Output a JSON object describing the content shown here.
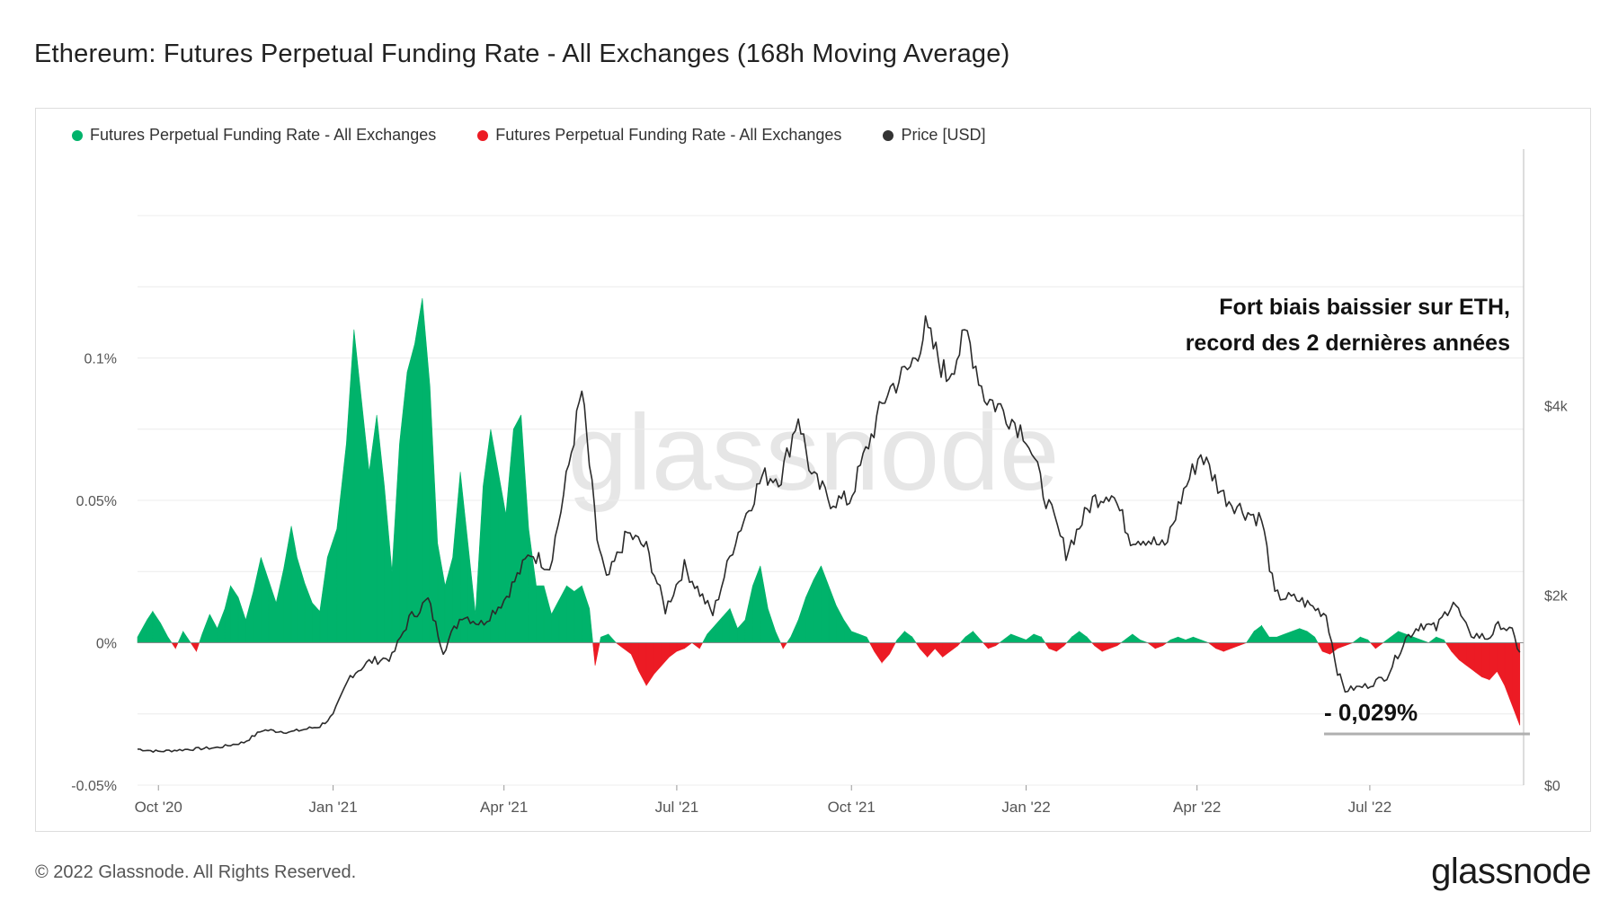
{
  "title": "Ethereum: Futures Perpetual Funding Rate - All Exchanges (168h Moving Average)",
  "footer": {
    "copyright": "© 2022 Glassnode. All Rights Reserved.",
    "logo": "glassnode"
  },
  "watermark": "glassnode",
  "annotation": {
    "line1": "Fort biais baissier sur ETH,",
    "line2": "record des 2 dernières années",
    "min_label": "- 0,029%"
  },
  "colors": {
    "positive": "#00b36b",
    "negative": "#ec1b24",
    "price": "#2b2b2b",
    "grid": "#ececec",
    "axis_text": "#555555"
  },
  "chart_data": {
    "type": "area",
    "title": "Ethereum: Futures Perpetual Funding Rate - All Exchanges (168h Moving Average)",
    "legend": [
      {
        "name": "Futures Perpetual Funding Rate - All Exchanges",
        "color": "#00b36b"
      },
      {
        "name": "Futures Perpetual Funding Rate - All Exchanges",
        "color": "#ec1b24"
      },
      {
        "name": "Price [USD]",
        "color": "#333333"
      }
    ],
    "x_start": "2020-09-20",
    "x_end": "2022-09-20",
    "x_ticks": [
      {
        "date": "2020-10-01",
        "label": "Oct '20"
      },
      {
        "date": "2021-01-01",
        "label": "Jan '21"
      },
      {
        "date": "2021-04-01",
        "label": "Apr '21"
      },
      {
        "date": "2021-07-01",
        "label": "Jul '21"
      },
      {
        "date": "2021-10-01",
        "label": "Oct '21"
      },
      {
        "date": "2022-01-01",
        "label": "Jan '22"
      },
      {
        "date": "2022-04-01",
        "label": "Apr '22"
      },
      {
        "date": "2022-07-01",
        "label": "Jul '22"
      }
    ],
    "y_left": {
      "min": -0.05,
      "max": 0.15,
      "ticks": [
        {
          "value": -0.05,
          "label": "-0.05%"
        },
        {
          "value": 0,
          "label": "0%"
        },
        {
          "value": 0.05,
          "label": "0.05%"
        },
        {
          "value": 0.1,
          "label": "0.1%"
        }
      ]
    },
    "y_right": {
      "min": 0,
      "max": 6000,
      "ticks": [
        {
          "value": 0,
          "label": "$0"
        },
        {
          "value": 2000,
          "label": "$2k"
        },
        {
          "value": 4000,
          "label": "$4k"
        }
      ]
    },
    "funding_rate_pct": [
      [
        "2020-09-20",
        0.002
      ],
      [
        "2020-09-25",
        0.008
      ],
      [
        "2020-09-28",
        0.011
      ],
      [
        "2020-10-02",
        0.007
      ],
      [
        "2020-10-06",
        0.002
      ],
      [
        "2020-10-10",
        -0.002
      ],
      [
        "2020-10-14",
        0.004
      ],
      [
        "2020-10-17",
        0.001
      ],
      [
        "2020-10-21",
        -0.003
      ],
      [
        "2020-10-24",
        0.003
      ],
      [
        "2020-10-28",
        0.01
      ],
      [
        "2020-11-01",
        0.005
      ],
      [
        "2020-11-05",
        0.012
      ],
      [
        "2020-11-08",
        0.02
      ],
      [
        "2020-11-12",
        0.016
      ],
      [
        "2020-11-16",
        0.008
      ],
      [
        "2020-11-20",
        0.018
      ],
      [
        "2020-11-24",
        0.03
      ],
      [
        "2020-11-28",
        0.022
      ],
      [
        "2020-12-02",
        0.014
      ],
      [
        "2020-12-06",
        0.026
      ],
      [
        "2020-12-10",
        0.041
      ],
      [
        "2020-12-13",
        0.03
      ],
      [
        "2020-12-17",
        0.021
      ],
      [
        "2020-12-21",
        0.014
      ],
      [
        "2020-12-25",
        0.011
      ],
      [
        "2020-12-29",
        0.03
      ],
      [
        "2021-01-03",
        0.04
      ],
      [
        "2021-01-08",
        0.07
      ],
      [
        "2021-01-12",
        0.11
      ],
      [
        "2021-01-16",
        0.085
      ],
      [
        "2021-01-20",
        0.06
      ],
      [
        "2021-01-24",
        0.08
      ],
      [
        "2021-01-28",
        0.055
      ],
      [
        "2021-02-01",
        0.025
      ],
      [
        "2021-02-05",
        0.07
      ],
      [
        "2021-02-09",
        0.095
      ],
      [
        "2021-02-13",
        0.105
      ],
      [
        "2021-02-17",
        0.121
      ],
      [
        "2021-02-21",
        0.09
      ],
      [
        "2021-02-25",
        0.035
      ],
      [
        "2021-03-01",
        0.02
      ],
      [
        "2021-03-05",
        0.03
      ],
      [
        "2021-03-09",
        0.06
      ],
      [
        "2021-03-13",
        0.035
      ],
      [
        "2021-03-17",
        0.01
      ],
      [
        "2021-03-21",
        0.055
      ],
      [
        "2021-03-25",
        0.075
      ],
      [
        "2021-03-29",
        0.06
      ],
      [
        "2021-04-02",
        0.045
      ],
      [
        "2021-04-06",
        0.075
      ],
      [
        "2021-04-10",
        0.08
      ],
      [
        "2021-04-14",
        0.04
      ],
      [
        "2021-04-18",
        0.02
      ],
      [
        "2021-04-22",
        0.02
      ],
      [
        "2021-04-26",
        0.01
      ],
      [
        "2021-04-30",
        0.015
      ],
      [
        "2021-05-04",
        0.02
      ],
      [
        "2021-05-08",
        0.018
      ],
      [
        "2021-05-12",
        0.02
      ],
      [
        "2021-05-16",
        0.012
      ],
      [
        "2021-05-19",
        -0.008
      ],
      [
        "2021-05-22",
        0.002
      ],
      [
        "2021-05-26",
        0.003
      ],
      [
        "2021-05-30",
        0.0
      ],
      [
        "2021-06-03",
        -0.002
      ],
      [
        "2021-06-07",
        -0.004
      ],
      [
        "2021-06-11",
        -0.01
      ],
      [
        "2021-06-15",
        -0.015
      ],
      [
        "2021-06-19",
        -0.011
      ],
      [
        "2021-06-23",
        -0.008
      ],
      [
        "2021-06-27",
        -0.005
      ],
      [
        "2021-07-01",
        -0.003
      ],
      [
        "2021-07-05",
        -0.002
      ],
      [
        "2021-07-09",
        0.0
      ],
      [
        "2021-07-13",
        -0.002
      ],
      [
        "2021-07-17",
        0.003
      ],
      [
        "2021-07-21",
        0.006
      ],
      [
        "2021-07-25",
        0.009
      ],
      [
        "2021-07-29",
        0.012
      ],
      [
        "2021-08-02",
        0.005
      ],
      [
        "2021-08-06",
        0.008
      ],
      [
        "2021-08-10",
        0.02
      ],
      [
        "2021-08-14",
        0.027
      ],
      [
        "2021-08-18",
        0.012
      ],
      [
        "2021-08-22",
        0.004
      ],
      [
        "2021-08-26",
        -0.002
      ],
      [
        "2021-08-30",
        0.002
      ],
      [
        "2021-09-03",
        0.008
      ],
      [
        "2021-09-07",
        0.016
      ],
      [
        "2021-09-11",
        0.022
      ],
      [
        "2021-09-15",
        0.027
      ],
      [
        "2021-09-19",
        0.02
      ],
      [
        "2021-09-23",
        0.013
      ],
      [
        "2021-09-27",
        0.008
      ],
      [
        "2021-10-01",
        0.004
      ],
      [
        "2021-10-05",
        0.003
      ],
      [
        "2021-10-09",
        0.002
      ],
      [
        "2021-10-13",
        -0.003
      ],
      [
        "2021-10-17",
        -0.007
      ],
      [
        "2021-10-21",
        -0.004
      ],
      [
        "2021-10-25",
        0.001
      ],
      [
        "2021-10-29",
        0.004
      ],
      [
        "2021-11-02",
        0.002
      ],
      [
        "2021-11-06",
        -0.002
      ],
      [
        "2021-11-10",
        -0.005
      ],
      [
        "2021-11-14",
        -0.002
      ],
      [
        "2021-11-18",
        -0.005
      ],
      [
        "2021-11-22",
        -0.003
      ],
      [
        "2021-11-26",
        -0.001
      ],
      [
        "2021-11-30",
        0.002
      ],
      [
        "2021-12-04",
        0.004
      ],
      [
        "2021-12-08",
        0.001
      ],
      [
        "2021-12-12",
        -0.002
      ],
      [
        "2021-12-16",
        -0.001
      ],
      [
        "2021-12-20",
        0.001
      ],
      [
        "2021-12-24",
        0.003
      ],
      [
        "2021-12-28",
        0.002
      ],
      [
        "2022-01-01",
        0.001
      ],
      [
        "2022-01-05",
        0.003
      ],
      [
        "2022-01-09",
        0.002
      ],
      [
        "2022-01-13",
        -0.002
      ],
      [
        "2022-01-17",
        -0.003
      ],
      [
        "2022-01-21",
        -0.001
      ],
      [
        "2022-01-25",
        0.002
      ],
      [
        "2022-01-29",
        0.004
      ],
      [
        "2022-02-02",
        0.002
      ],
      [
        "2022-02-06",
        -0.001
      ],
      [
        "2022-02-10",
        -0.003
      ],
      [
        "2022-02-14",
        -0.002
      ],
      [
        "2022-02-18",
        -0.001
      ],
      [
        "2022-02-22",
        0.001
      ],
      [
        "2022-02-26",
        0.003
      ],
      [
        "2022-03-02",
        0.001
      ],
      [
        "2022-03-06",
        0.0
      ],
      [
        "2022-03-10",
        -0.002
      ],
      [
        "2022-03-14",
        -0.001
      ],
      [
        "2022-03-18",
        0.001
      ],
      [
        "2022-03-22",
        0.002
      ],
      [
        "2022-03-26",
        0.001
      ],
      [
        "2022-03-30",
        0.002
      ],
      [
        "2022-04-03",
        0.001
      ],
      [
        "2022-04-07",
        0.0
      ],
      [
        "2022-04-11",
        -0.002
      ],
      [
        "2022-04-15",
        -0.003
      ],
      [
        "2022-04-19",
        -0.002
      ],
      [
        "2022-04-23",
        -0.001
      ],
      [
        "2022-04-27",
        0.0
      ],
      [
        "2022-05-01",
        0.004
      ],
      [
        "2022-05-05",
        0.006
      ],
      [
        "2022-05-09",
        0.002
      ],
      [
        "2022-05-13",
        0.002
      ],
      [
        "2022-05-17",
        0.003
      ],
      [
        "2022-05-21",
        0.004
      ],
      [
        "2022-05-25",
        0.005
      ],
      [
        "2022-05-29",
        0.004
      ],
      [
        "2022-06-02",
        0.002
      ],
      [
        "2022-06-06",
        -0.003
      ],
      [
        "2022-06-10",
        -0.004
      ],
      [
        "2022-06-14",
        -0.002
      ],
      [
        "2022-06-18",
        -0.001
      ],
      [
        "2022-06-22",
        0.0
      ],
      [
        "2022-06-26",
        0.002
      ],
      [
        "2022-06-30",
        0.001
      ],
      [
        "2022-07-04",
        -0.002
      ],
      [
        "2022-07-08",
        0.0
      ],
      [
        "2022-07-12",
        0.002
      ],
      [
        "2022-07-16",
        0.004
      ],
      [
        "2022-07-20",
        0.003
      ],
      [
        "2022-07-24",
        0.002
      ],
      [
        "2022-07-28",
        0.001
      ],
      [
        "2022-08-01",
        0.0
      ],
      [
        "2022-08-05",
        0.002
      ],
      [
        "2022-08-09",
        0.001
      ],
      [
        "2022-08-13",
        -0.003
      ],
      [
        "2022-08-17",
        -0.006
      ],
      [
        "2022-08-21",
        -0.008
      ],
      [
        "2022-08-25",
        -0.01
      ],
      [
        "2022-08-29",
        -0.012
      ],
      [
        "2022-09-02",
        -0.013
      ],
      [
        "2022-09-06",
        -0.01
      ],
      [
        "2022-09-10",
        -0.015
      ],
      [
        "2022-09-14",
        -0.022
      ],
      [
        "2022-09-18",
        -0.029
      ]
    ],
    "price_usd": [
      [
        "2020-09-20",
        380
      ],
      [
        "2020-10-01",
        355
      ],
      [
        "2020-10-15",
        375
      ],
      [
        "2020-11-01",
        395
      ],
      [
        "2020-11-15",
        450
      ],
      [
        "2020-11-25",
        580
      ],
      [
        "2020-12-10",
        560
      ],
      [
        "2020-12-25",
        620
      ],
      [
        "2021-01-01",
        735
      ],
      [
        "2021-01-10",
        1150
      ],
      [
        "2021-01-20",
        1300
      ],
      [
        "2021-02-01",
        1350
      ],
      [
        "2021-02-10",
        1750
      ],
      [
        "2021-02-20",
        1950
      ],
      [
        "2021-02-28",
        1420
      ],
      [
        "2021-03-10",
        1800
      ],
      [
        "2021-03-20",
        1700
      ],
      [
        "2021-04-01",
        1950
      ],
      [
        "2021-04-15",
        2450
      ],
      [
        "2021-04-25",
        2300
      ],
      [
        "2021-05-01",
        2900
      ],
      [
        "2021-05-12",
        4150
      ],
      [
        "2021-05-20",
        2600
      ],
      [
        "2021-05-25",
        2150
      ],
      [
        "2021-06-05",
        2650
      ],
      [
        "2021-06-15",
        2500
      ],
      [
        "2021-06-25",
        1850
      ],
      [
        "2021-07-05",
        2300
      ],
      [
        "2021-07-20",
        1800
      ],
      [
        "2021-08-01",
        2600
      ],
      [
        "2021-08-15",
        3250
      ],
      [
        "2021-08-25",
        3250
      ],
      [
        "2021-09-03",
        3900
      ],
      [
        "2021-09-10",
        3250
      ],
      [
        "2021-09-20",
        3000
      ],
      [
        "2021-09-30",
        3000
      ],
      [
        "2021-10-10",
        3600
      ],
      [
        "2021-10-20",
        4150
      ],
      [
        "2021-11-01",
        4400
      ],
      [
        "2021-11-09",
        4800
      ],
      [
        "2021-11-20",
        4300
      ],
      [
        "2021-12-01",
        4750
      ],
      [
        "2021-12-10",
        4100
      ],
      [
        "2021-12-20",
        3950
      ],
      [
        "2022-01-01",
        3700
      ],
      [
        "2022-01-10",
        3100
      ],
      [
        "2022-01-22",
        2450
      ],
      [
        "2022-02-05",
        3000
      ],
      [
        "2022-02-15",
        3100
      ],
      [
        "2022-02-25",
        2600
      ],
      [
        "2022-03-05",
        2600
      ],
      [
        "2022-03-15",
        2500
      ],
      [
        "2022-03-25",
        3100
      ],
      [
        "2022-04-03",
        3500
      ],
      [
        "2022-04-15",
        3050
      ],
      [
        "2022-04-25",
        2900
      ],
      [
        "2022-05-05",
        2800
      ],
      [
        "2022-05-12",
        2000
      ],
      [
        "2022-05-25",
        1950
      ],
      [
        "2022-06-08",
        1800
      ],
      [
        "2022-06-14",
        1200
      ],
      [
        "2022-06-18",
        1000
      ],
      [
        "2022-06-30",
        1050
      ],
      [
        "2022-07-10",
        1150
      ],
      [
        "2022-07-20",
        1550
      ],
      [
        "2022-07-28",
        1700
      ],
      [
        "2022-08-05",
        1650
      ],
      [
        "2022-08-14",
        1950
      ],
      [
        "2022-08-22",
        1600
      ],
      [
        "2022-09-01",
        1550
      ],
      [
        "2022-09-08",
        1700
      ],
      [
        "2022-09-14",
        1600
      ],
      [
        "2022-09-18",
        1400
      ]
    ]
  }
}
